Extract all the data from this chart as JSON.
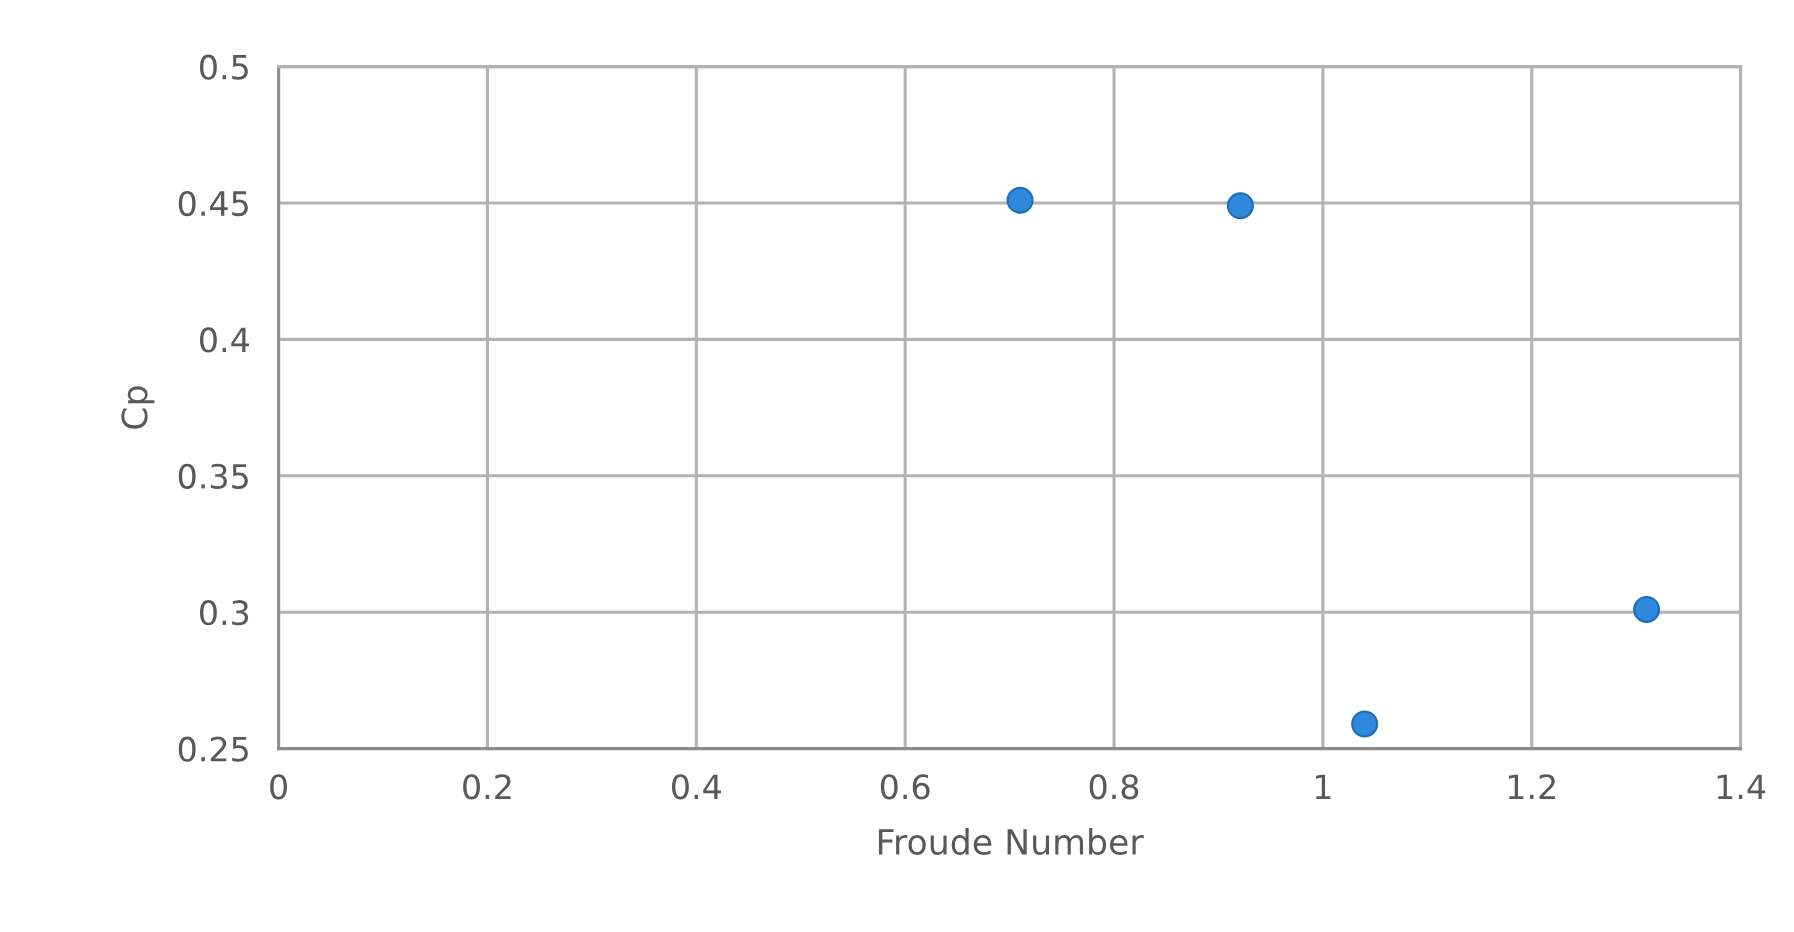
{
  "chart_data": {
    "type": "scatter",
    "xlabel": "Froude Number",
    "ylabel": "Cp",
    "x": [
      0.71,
      0.921,
      1.04,
      1.31
    ],
    "values": [
      0.451,
      0.449,
      0.259,
      0.301
    ],
    "color": "#2e89dc",
    "xlim": [
      0,
      1.4
    ],
    "xticks": [
      0,
      0.2,
      0.4,
      0.6,
      0.8,
      1,
      1.2,
      1.4
    ],
    "ylim": [
      0.25,
      0.5
    ],
    "yticks": [
      0.25,
      0.3,
      0.35,
      0.4,
      0.45,
      0.5
    ],
    "grid": true,
    "marker": "circle"
  }
}
